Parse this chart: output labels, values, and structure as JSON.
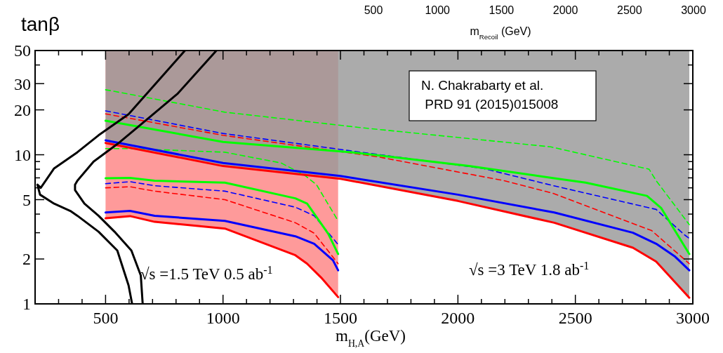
{
  "chart_data": {
    "type": "line",
    "xlabel": "m$_{H,A}$(GeV)",
    "ylabel": "tanβ",
    "x2label": "m$_{Recoil}$ (GeV)",
    "log": "y",
    "xlim": [
      200,
      3000
    ],
    "xticks": [
      {
        "value": 200,
        "label": null
      },
      {
        "value": 300,
        "label": null
      },
      {
        "value": 400,
        "label": null
      },
      500,
      {
        "value": 600,
        "label": null
      },
      {
        "value": 700,
        "label": null
      },
      {
        "value": 800,
        "label": null
      },
      {
        "value": 900,
        "label": null
      },
      1000,
      {
        "value": 1100,
        "label": null
      },
      {
        "value": 1200,
        "label": null
      },
      {
        "value": 1300,
        "label": null
      },
      {
        "value": 1400,
        "label": null
      },
      1500,
      {
        "value": 1600,
        "label": null
      },
      {
        "value": 1700,
        "label": null
      },
      {
        "value": 1800,
        "label": null
      },
      {
        "value": 1900,
        "label": null
      },
      2000,
      {
        "value": 2100,
        "label": null
      },
      {
        "value": 2200,
        "label": null
      },
      {
        "value": 2300,
        "label": null
      },
      {
        "value": 2400,
        "label": null
      },
      2500,
      {
        "value": 2600,
        "label": null
      },
      {
        "value": 2700,
        "label": null
      },
      {
        "value": 2800,
        "label": null
      },
      {
        "value": 2900,
        "label": null
      },
      3000
    ],
    "ylim": [
      1,
      50
    ],
    "yticks": [
      1,
      2,
      {
        "value": 3,
        "label": null
      },
      {
        "value": 4,
        "label": null
      },
      5,
      {
        "value": 6,
        "label": null
      },
      {
        "value": 7,
        "label": null
      },
      {
        "value": 8,
        "label": null
      },
      {
        "value": 9,
        "label": null
      },
      10,
      20,
      30,
      {
        "value": 40,
        "label": null
      },
      50
    ],
    "x2lim": [
      500,
      3000
    ],
    "x2ticks": [
      500,
      1000,
      1500,
      2000,
      2500,
      3000
    ],
    "annotations": [
      "N. Chakrabarty et al.\n PRD 91 (2015)015008",
      "√s =1.5 TeV 0.5 ab$^{-1}$",
      "√s =3 TeV 1.8 ab$^{-1}$"
    ],
    "series": [
      {
        "color": "#ff0000",
        "x": [
          500,
          604,
          709,
          1008,
          1308,
          1358,
          1418,
          1490
        ],
        "values": [
          3.75,
          3.88,
          3.55,
          3.2,
          2.12,
          1.86,
          1.5,
          1.11
        ],
        "lower": [
          3.75,
          3.88,
          3.55,
          3.2,
          2.12,
          1.86,
          1.5,
          1.11
        ],
        "upper": [
          50,
          50,
          50,
          50,
          50,
          50,
          50,
          50
        ]
      },
      {
        "color": "#0000ff",
        "x": [
          500,
          604,
          709,
          1008,
          1308,
          1388,
          1468,
          1490
        ],
        "values": [
          4.1,
          4.2,
          3.9,
          3.6,
          2.84,
          2.53,
          1.96,
          1.68
        ]
      },
      {
        "color": "#ff0000",
        "line_style": "dashed",
        "x": [
          500,
          604,
          709,
          1008,
          1308,
          1388,
          1490
        ],
        "values": [
          6.0,
          6.1,
          5.7,
          5.0,
          3.5,
          2.98,
          1.86
        ]
      },
      {
        "color": "#0000ff",
        "line_style": "dashed",
        "x": [
          500,
          604,
          709,
          1008,
          1308,
          1388,
          1490
        ],
        "values": [
          6.4,
          6.6,
          6.2,
          5.7,
          4.45,
          3.9,
          2.5
        ]
      },
      {
        "color": "#00ff00",
        "x": [
          500,
          604,
          709,
          1008,
          1308,
          1358,
          1448,
          1490
        ],
        "values": [
          6.96,
          7.0,
          6.7,
          6.5,
          5.1,
          4.7,
          2.95,
          2.16
        ]
      },
      {
        "color": "#00ff00",
        "line_style": "dashed",
        "x": [
          500,
          600,
          1008,
          1248,
          1347,
          1398,
          1490
        ],
        "values": [
          11,
          11,
          10.4,
          8.8,
          7.3,
          6.3,
          3.6
        ]
      },
      {
        "color": "#ff0000",
        "x": [
          500,
          1000,
          1500,
          2000,
          2410,
          2745,
          2844,
          2985
        ],
        "values": [
          12,
          8.4,
          6.9,
          4.9,
          3.5,
          2.38,
          1.92,
          1.1
        ],
        "lower": [
          12,
          8.4,
          6.9,
          4.9,
          3.5,
          2.38,
          1.92,
          1.1
        ],
        "upper": [
          50,
          50,
          50,
          50,
          50,
          50,
          50,
          50
        ]
      },
      {
        "color": "#0000ff",
        "x": [
          500,
          1000,
          1500,
          2000,
          2410,
          2745,
          2844,
          2925,
          2985
        ],
        "values": [
          12.5,
          8.8,
          7.2,
          5.4,
          4.1,
          3.0,
          2.53,
          2.07,
          1.68
        ]
      },
      {
        "color": "#ff0000",
        "line_style": "dashed",
        "x": [
          500,
          1000,
          1657,
          2197,
          2407,
          2825,
          2985
        ],
        "values": [
          18.8,
          13.5,
          9.7,
          6.7,
          5.5,
          3.1,
          1.86
        ]
      },
      {
        "color": "#0000ff",
        "line_style": "dashed",
        "x": [
          500,
          1000,
          1587,
          2107,
          2407,
          2844,
          2965,
          2985
        ],
        "values": [
          19.7,
          13.9,
          10.4,
          8.1,
          6.2,
          4.3,
          2.9,
          2.75
        ]
      },
      {
        "color": "#00ff00",
        "x": [
          500,
          1000,
          1547,
          2047,
          2410,
          2544,
          2805,
          2865,
          2985
        ],
        "values": [
          16.9,
          12.2,
          10.4,
          8.4,
          6.96,
          6.5,
          5.3,
          4.4,
          2.16
        ]
      },
      {
        "color": "#00ff00",
        "line_style": "dashed",
        "x": [
          500,
          1008,
          1587,
          2395,
          2814,
          2844,
          2985
        ],
        "values": [
          27.3,
          19.3,
          15.2,
          11.3,
          8.0,
          6.7,
          3.4
        ]
      },
      {
        "color": "#000000",
        "x": [
          838,
          598,
          470,
          380,
          281,
          224,
          210,
          221,
          281,
          350,
          380,
          470,
          550,
          598,
          613
        ],
        "values": [
          50,
          18.7,
          13.5,
          10.4,
          8.1,
          6.0,
          6.3,
          5.4,
          4.7,
          4.2,
          3.9,
          3.05,
          2.28,
          1.33,
          1
        ]
      },
      {
        "color": "#000000",
        "x": [
          972,
          808,
          688,
          559,
          449,
          380,
          370,
          370,
          410,
          470,
          538,
          610,
          650,
          658
        ],
        "values": [
          50,
          25.8,
          17.9,
          12.1,
          9.0,
          6.7,
          6.3,
          5.8,
          4.7,
          3.9,
          3.05,
          2.28,
          1.55,
          1
        ]
      }
    ]
  }
}
